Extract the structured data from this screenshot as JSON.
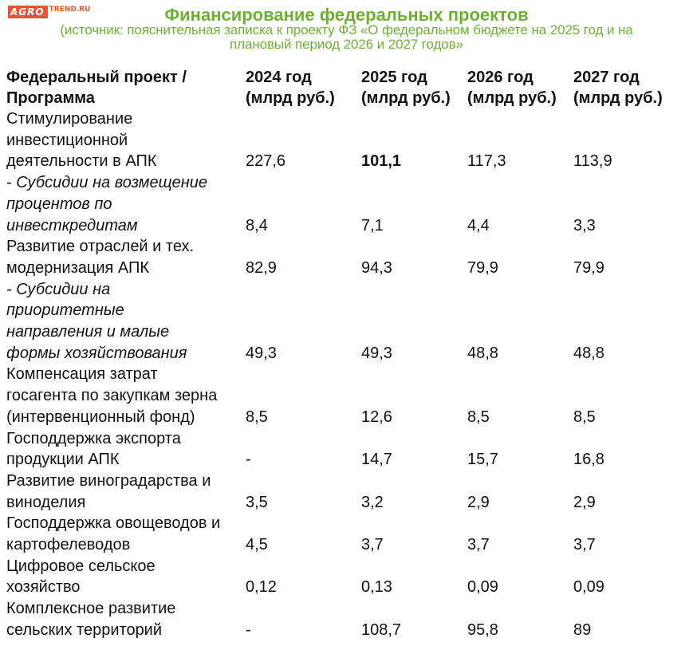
{
  "logo": {
    "agro": "AGRO",
    "trend": "TREND.RU"
  },
  "header": {
    "title": "Финансирование федеральных проектов",
    "subtitle_lines": [
      "(источник: пояснительная записка к проекту ФЗ «О федеральном бюджете на 2025 год и на",
      "плановый период 2026 и 2027 годов»"
    ]
  },
  "table": {
    "columns": [
      [
        "Федеральный проект /",
        "Программа"
      ],
      [
        "2024 год",
        "(млрд руб.)"
      ],
      [
        "2025 год",
        "(млрд руб.)"
      ],
      [
        "2026 год",
        "(млрд руб.)"
      ],
      [
        "2027 год",
        "(млрд руб.)"
      ]
    ],
    "rows": [
      {
        "label": [
          "Стимулирование",
          "инвестиционной",
          "деятельности в АПК"
        ],
        "values": [
          "227,6",
          "101,1",
          "117,3",
          "113,9"
        ],
        "italic": false
      },
      {
        "label": [
          "- Субсидии на возмещение",
          "процентов по",
          "инвесткредитам"
        ],
        "values": [
          "8,4",
          "7,1",
          "4,4",
          "3,3"
        ],
        "italic": true
      },
      {
        "label": [
          "Развитие отраслей и тех.",
          "модернизация АПК"
        ],
        "values": [
          "82,9",
          "94,3",
          "79,9",
          "79,9"
        ],
        "italic": false
      },
      {
        "label": [
          "- Субсидии на",
          "приоритетные",
          "направления и малые",
          "формы хозяйствования"
        ],
        "values": [
          "49,3",
          "49,3",
          "48,8",
          "48,8"
        ],
        "italic": true
      },
      {
        "label": [
          "Компенсация затрат",
          "госагента по закупкам зерна",
          "(интервенционный фонд)"
        ],
        "values": [
          "8,5",
          "12,6",
          "8,5",
          "8,5"
        ],
        "italic": false
      },
      {
        "label": [
          "Господдержка экспорта",
          "продукции АПК"
        ],
        "values": [
          "-",
          "14,7",
          "15,7",
          "16,8"
        ],
        "italic": false
      },
      {
        "label": [
          "Развитие виноградарства и",
          "виноделия"
        ],
        "values": [
          "3,5",
          "3,2",
          "2,9",
          "2,9"
        ],
        "italic": false
      },
      {
        "label": [
          "Господдержка овощеводов и",
          "картофелеводов"
        ],
        "values": [
          "4,5",
          "3,7",
          "3,7",
          "3,7"
        ],
        "italic": false
      },
      {
        "label": [
          "Цифровое сельское",
          "хозяйство"
        ],
        "values": [
          "0,12",
          "0,13",
          "0,09",
          "0,09"
        ],
        "italic": false
      },
      {
        "label": [
          "Комплексное развитие",
          "сельских территорий"
        ],
        "values": [
          "-",
          "108,7",
          "95,8",
          "89"
        ],
        "italic": false
      }
    ]
  }
}
